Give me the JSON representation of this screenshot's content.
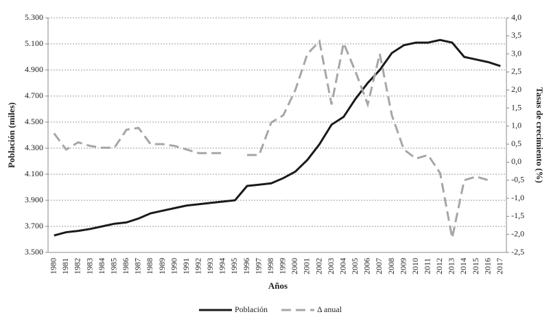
{
  "chart_data": {
    "type": "line",
    "x_label": "Años",
    "y_label": "Población (miles)",
    "y2_label": "Tasas de crecimiento (%)",
    "categories": [
      "1980",
      "1981",
      "1982",
      "1983",
      "1984",
      "1985",
      "1986",
      "1987",
      "1988",
      "1989",
      "1990",
      "1991",
      "1992",
      "1993",
      "1994",
      "1995",
      "1996",
      "1997",
      "1998",
      "1999",
      "2000",
      "2001",
      "2002",
      "2003",
      "2004",
      "2005",
      "2006",
      "2007",
      "2008",
      "2009",
      "2010",
      "2011",
      "2012",
      "2013",
      "2014",
      "2015",
      "2016",
      "2017"
    ],
    "series": [
      {
        "name": "Población",
        "color": "#1a1a1a",
        "line_style": "solid",
        "axis": "y",
        "values": [
          3630,
          3655,
          3665,
          3680,
          3700,
          3720,
          3730,
          3760,
          3800,
          3820,
          3840,
          3860,
          3870,
          3880,
          3890,
          3900,
          4010,
          4020,
          4030,
          4070,
          4120,
          4210,
          4330,
          4480,
          4540,
          4680,
          4800,
          4900,
          5030,
          5090,
          5110,
          5110,
          5130,
          5110,
          5000,
          4980,
          4960,
          4930
        ]
      },
      {
        "name": "Δ anual",
        "color": "#a6a6a6",
        "line_style": "dashed",
        "axis": "y2",
        "values": [
          0.8,
          0.35,
          0.55,
          0.45,
          0.4,
          0.4,
          0.9,
          0.95,
          0.5,
          0.5,
          0.45,
          0.35,
          0.25,
          0.25,
          0.25,
          null,
          0.2,
          0.2,
          1.1,
          1.3,
          2.0,
          3.0,
          3.35,
          1.6,
          3.3,
          2.5,
          1.6,
          3.0,
          1.3,
          0.35,
          0.1,
          0.2,
          -0.3,
          -2.1,
          -0.5,
          -0.4,
          -0.5,
          null
        ]
      }
    ],
    "ylim": [
      3500,
      5300
    ],
    "yticks": [
      {
        "value": 3500,
        "label": "3.500"
      },
      {
        "value": 3700,
        "label": "3.700"
      },
      {
        "value": 3900,
        "label": "3.900"
      },
      {
        "value": 4100,
        "label": "4.100"
      },
      {
        "value": 4300,
        "label": "4.300"
      },
      {
        "value": 4500,
        "label": "4.500"
      },
      {
        "value": 4700,
        "label": "4.700"
      },
      {
        "value": 4900,
        "label": "4.900"
      },
      {
        "value": 5100,
        "label": "5.100"
      },
      {
        "value": 5300,
        "label": "5.300"
      }
    ],
    "y2lim": [
      -2.5,
      4.0
    ],
    "y2ticks": [
      {
        "value": -2.5,
        "label": "-2,5"
      },
      {
        "value": -2.0,
        "label": "-2,0"
      },
      {
        "value": -1.5,
        "label": "-1,5"
      },
      {
        "value": -1.0,
        "label": "-1,0"
      },
      {
        "value": -0.5,
        "label": "-0,5"
      },
      {
        "value": 0,
        "label": "0,0"
      },
      {
        "value": 0.5,
        "label": "0,5"
      },
      {
        "value": 1.0,
        "label": "1,0"
      },
      {
        "value": 1.5,
        "label": "1,5"
      },
      {
        "value": 2.0,
        "label": "2,0"
      },
      {
        "value": 2.5,
        "label": "2,5"
      },
      {
        "value": 3.0,
        "label": "3,0"
      },
      {
        "value": 3.5,
        "label": "3,5"
      },
      {
        "value": 4.0,
        "label": "4,0"
      }
    ],
    "grid": true,
    "legend": "bottom"
  }
}
